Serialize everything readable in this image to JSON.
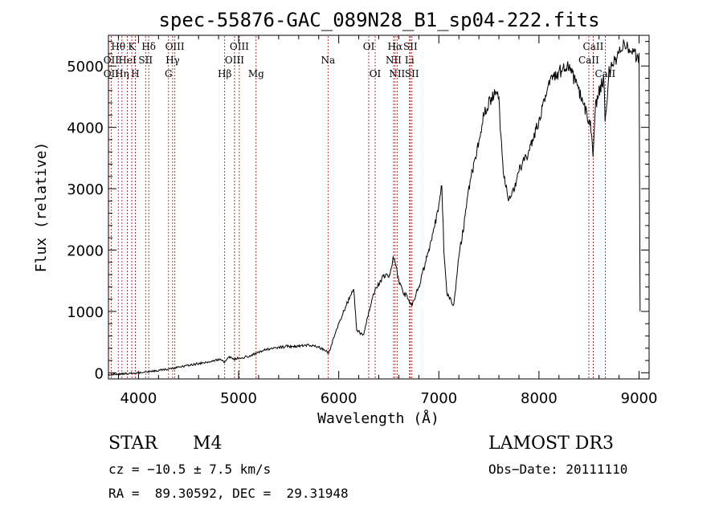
{
  "chart_data": {
    "type": "line",
    "title": "spec-55876-GAC_089N28_B1_sp04-222.fits",
    "xlabel": "Wavelength (Å)",
    "ylabel": "Flux (relative)",
    "xlim": [
      3700,
      9100
    ],
    "ylim": [
      -100,
      5500
    ],
    "x_ticks": [
      4000,
      5000,
      6000,
      7000,
      8000,
      9000
    ],
    "x_tick_labels": [
      "4000",
      "5000",
      "6000",
      "7000",
      "8000",
      "9000"
    ],
    "y_ticks": [
      0,
      1000,
      2000,
      3000,
      4000,
      5000
    ],
    "y_tick_labels": [
      "0",
      "1000",
      "2000",
      "3000",
      "4000",
      "5000"
    ],
    "grid": false,
    "series": [
      {
        "name": "flux",
        "color": "#000000",
        "x": [
          3700,
          3800,
          3900,
          4000,
          4100,
          4200,
          4300,
          4400,
          4500,
          4600,
          4700,
          4800,
          4860,
          4900,
          4950,
          5000,
          5050,
          5100,
          5200,
          5300,
          5400,
          5500,
          5600,
          5700,
          5800,
          5900,
          5930,
          6000,
          6100,
          6150,
          6180,
          6250,
          6300,
          6350,
          6400,
          6450,
          6500,
          6550,
          6600,
          6650,
          6700,
          6730,
          6800,
          6900,
          7000,
          7030,
          7050,
          7080,
          7100,
          7150,
          7200,
          7250,
          7300,
          7400,
          7450,
          7500,
          7550,
          7600,
          7620,
          7650,
          7700,
          7750,
          7800,
          7900,
          8000,
          8100,
          8200,
          8300,
          8400,
          8480,
          8520,
          8540,
          8560,
          8600,
          8650,
          8660,
          8700,
          8800,
          8850,
          8900,
          8950,
          9000,
          9010
        ],
        "values": [
          -30,
          -20,
          -10,
          0,
          20,
          40,
          60,
          90,
          120,
          150,
          180,
          220,
          180,
          260,
          220,
          240,
          250,
          270,
          340,
          390,
          420,
          430,
          430,
          460,
          420,
          330,
          470,
          800,
          1200,
          1350,
          700,
          600,
          1000,
          1300,
          1450,
          1600,
          1550,
          1900,
          1500,
          1300,
          1200,
          1100,
          1400,
          2000,
          2700,
          3100,
          2000,
          1300,
          1250,
          1100,
          1900,
          2400,
          3000,
          3800,
          4200,
          4400,
          4550,
          4500,
          3800,
          3200,
          2800,
          3000,
          3300,
          3600,
          4100,
          4700,
          4900,
          5000,
          4600,
          4200,
          4000,
          3500,
          4300,
          4600,
          4800,
          4000,
          4900,
          5200,
          5400,
          5300,
          5200,
          5100,
          1000
        ]
      }
    ],
    "annotations": [
      {
        "wavelength": 3798,
        "label": "Hθ",
        "row": 1
      },
      {
        "wavelength": 3727,
        "label": "OII",
        "row": 2
      },
      {
        "wavelength": 3727,
        "label": "OII",
        "row": 3
      },
      {
        "wavelength": 3835,
        "label": "Hη",
        "row": 3
      },
      {
        "wavelength": 3889,
        "label": "HeI",
        "row": 2
      },
      {
        "wavelength": 3933,
        "label": "K",
        "row": 1
      },
      {
        "wavelength": 3968,
        "label": "H",
        "row": 3
      },
      {
        "wavelength": 4071,
        "label": "SII",
        "row": 2
      },
      {
        "wavelength": 4102,
        "label": "Hδ",
        "row": 1
      },
      {
        "wavelength": 4300,
        "label": "G",
        "row": 3
      },
      {
        "wavelength": 4341,
        "label": "Hγ",
        "row": 2
      },
      {
        "wavelength": 4363,
        "label": "OIII",
        "row": 1
      },
      {
        "wavelength": 4861,
        "label": "Hβ",
        "row": 3
      },
      {
        "wavelength": 4959,
        "label": "OIII",
        "row": 2
      },
      {
        "wavelength": 5007,
        "label": "OIII",
        "row": 1
      },
      {
        "wavelength": 5175,
        "label": "Mg",
        "row": 3
      },
      {
        "wavelength": 5893,
        "label": "Na",
        "row": 2
      },
      {
        "wavelength": 6300,
        "label": "OI",
        "row": 1
      },
      {
        "wavelength": 6364,
        "label": "OI",
        "row": 3
      },
      {
        "wavelength": 6548,
        "label": "NII",
        "row": 2
      },
      {
        "wavelength": 6563,
        "label": "Hα",
        "row": 1
      },
      {
        "wavelength": 6583,
        "label": "NII",
        "row": 3
      },
      {
        "wavelength": 6707,
        "label": "Li",
        "row": 2
      },
      {
        "wavelength": 6716,
        "label": "SII",
        "row": 1
      },
      {
        "wavelength": 6731,
        "label": "SII",
        "row": 3
      },
      {
        "wavelength": 8498,
        "label": "CaII",
        "row": 2
      },
      {
        "wavelength": 8542,
        "label": "CaII",
        "row": 1
      },
      {
        "wavelength": 8662,
        "label": "CaII",
        "row": 3
      }
    ]
  },
  "info": {
    "object_class": "STAR",
    "subclass": "M4",
    "survey": "LAMOST DR3",
    "redshift": "cz = −10.5 ± 7.5 km/s",
    "obs_date": "Obs−Date: 20111110",
    "coords": "RA =  89.30592, DEC =  29.31948"
  }
}
